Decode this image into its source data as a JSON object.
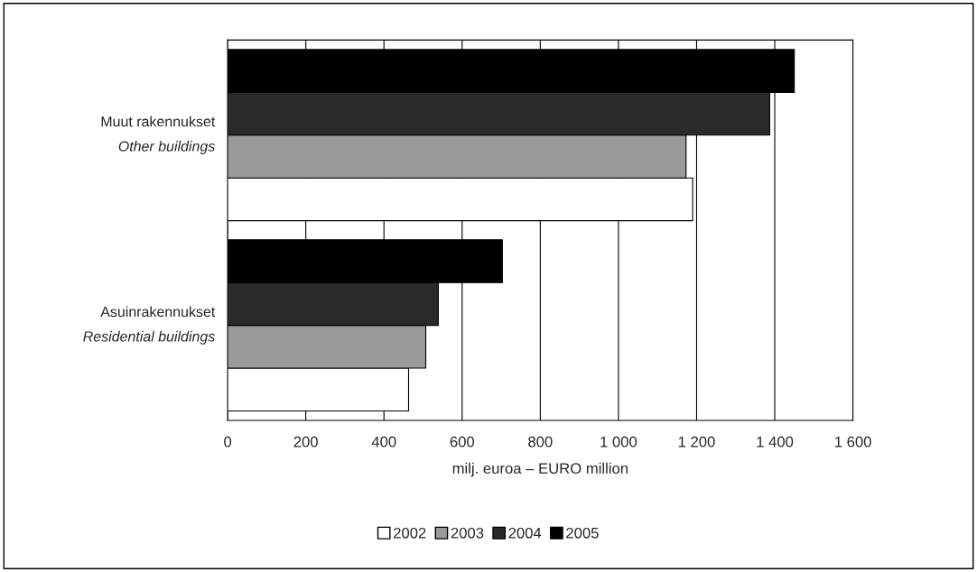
{
  "chart_data": {
    "type": "bar",
    "orientation": "horizontal",
    "categories": [
      "Muut rakennukset\nOther buildings",
      "Asuinrakennukset\nResidential buildings"
    ],
    "series": [
      {
        "name": "2002",
        "color": "#ffffff",
        "values": [
          1190,
          463
        ]
      },
      {
        "name": "2003",
        "color": "#9a9a9a",
        "values": [
          1173,
          507
        ]
      },
      {
        "name": "2004",
        "color": "#2a2a2a",
        "values": [
          1387,
          539
        ]
      },
      {
        "name": "2005",
        "color": "#000000",
        "values": [
          1450,
          703
        ]
      }
    ],
    "xlabel": "milj. euroa – EURO million",
    "xlim": [
      0,
      1600
    ],
    "xticks": [
      0,
      200,
      400,
      600,
      800,
      {
        "value": 1000,
        "label": "1 000"
      },
      {
        "value": 1200,
        "label": "1 200"
      },
      {
        "value": 1400,
        "label": "1 400"
      },
      {
        "value": 1600,
        "label": "1 600"
      }
    ],
    "grid": "x",
    "legend": "bottom"
  }
}
